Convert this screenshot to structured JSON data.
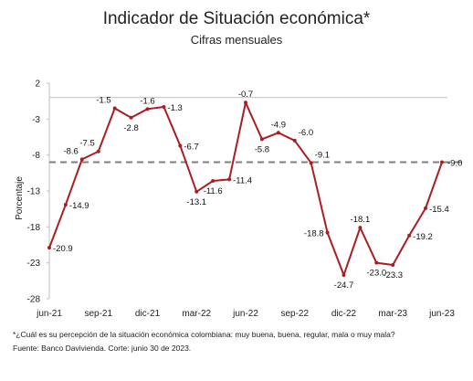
{
  "chart_data": {
    "type": "line",
    "title": "Indicador de Situación económica*",
    "subtitle": "Cifras mensuales",
    "ylabel": "Porcentaje",
    "xlabel": "",
    "ylim": [
      -28,
      2
    ],
    "yticks": [
      2,
      -3,
      -8,
      -13,
      -18,
      -23,
      -28
    ],
    "xtick_labels": [
      "jun-21",
      "sep-21",
      "dic-21",
      "mar-22",
      "jun-22",
      "sep-22",
      "dic-22",
      "mar-23",
      "jun-23"
    ],
    "x": [
      "jun-21",
      "jul-21",
      "ago-21",
      "sep-21",
      "oct-21",
      "nov-21",
      "dic-21",
      "ene-22",
      "feb-22",
      "mar-22",
      "abr-22",
      "may-22",
      "jun-22",
      "jul-22",
      "ago-22",
      "sep-22",
      "oct-22",
      "nov-22",
      "dic-22",
      "ene-23",
      "feb-23",
      "mar-23",
      "abr-23",
      "may-23",
      "jun-23"
    ],
    "values": [
      -20.9,
      -14.9,
      -8.6,
      -7.5,
      -1.5,
      -2.8,
      -1.6,
      -1.3,
      -6.7,
      -13.1,
      -11.6,
      -11.4,
      -0.7,
      -5.8,
      -4.9,
      -6.0,
      -9.1,
      -18.8,
      -24.7,
      -18.1,
      -23.0,
      -23.3,
      -19.2,
      -15.4,
      -9.0
    ],
    "value_labels": [
      "-20.9",
      "-14.9",
      "-8.6",
      "-7.5",
      "-1.5",
      "-2.8",
      "-1.6",
      "-1.3",
      "-6.7",
      "-13.1",
      "-11.6",
      "-11.4",
      "-0.7",
      "-5.8",
      "-4.9",
      "-6.0",
      "-9.1",
      "-18.8",
      "-24.7",
      "-18.1",
      "-23.0",
      "-23.3",
      "-19.2",
      "-15.4",
      "-9.0"
    ],
    "reference_line": -9.0,
    "grid": false,
    "colors": {
      "series": "#a81e22",
      "reference": "#7f7f7f",
      "axis": "#bfbfbf"
    }
  },
  "footnotes": {
    "note": "*¿Cuál es su percepción de la situación económica colombiana: muy buena, buena, regular, mala  o muy mala?",
    "source": "Fuente: Banco Davivienda. Corte: junio 30 de 2023."
  }
}
